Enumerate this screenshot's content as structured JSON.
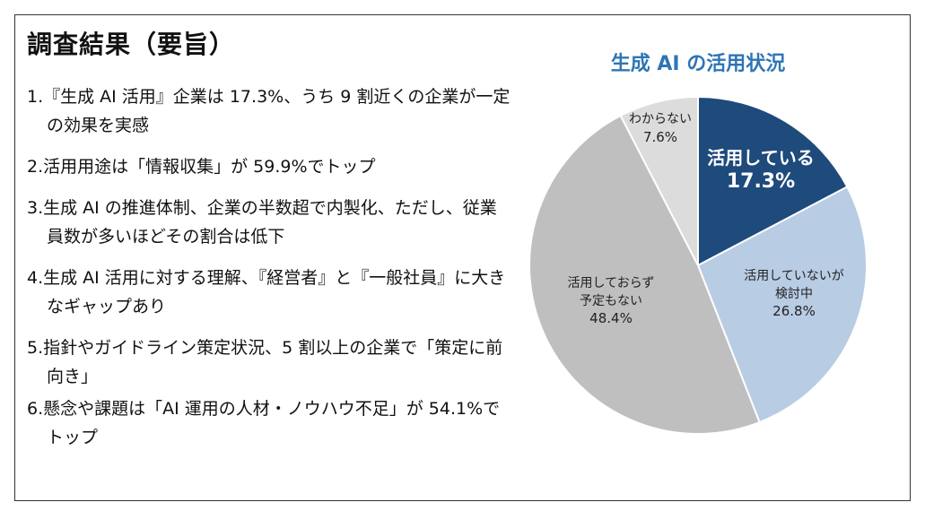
{
  "summary": {
    "heading": "調査結果（要旨）",
    "points": [
      "1.『生成 AI 活用』企業は 17.3%、うち 9 割近くの企業が一定の効果を実感",
      "2.活用用途は「情報収集」が 59.9%でトップ",
      "3.生成 AI の推進体制、企業の半数超で内製化、ただし、従業員数が多いほどその割合は低下",
      "4.生成 AI 活用に対する理解、『経営者』と『一般社員』に大きなギャップあり",
      "5.指針やガイドライン策定状況、5 割以上の企業で「策定に前向き」",
      "6.懸念や課題は「AI 運用の人材・ノウハウ不足」が 54.1%でトップ"
    ]
  },
  "chart_data": {
    "type": "pie",
    "title": "生成 AI の活用状況",
    "slices": [
      {
        "label": [
          "活用している"
        ],
        "value": 17.3,
        "value_label": "17.3%",
        "color": "#1f4a7c",
        "text_color": "#ffffff"
      },
      {
        "label": [
          "活用していないが",
          "検討中"
        ],
        "value": 26.8,
        "value_label": "26.8%",
        "color": "#b8cce4",
        "text_color": "#222222"
      },
      {
        "label": [
          "活用しておらず",
          "予定もない"
        ],
        "value": 48.4,
        "value_label": "48.4%",
        "color": "#bfbfbf",
        "text_color": "#222222"
      },
      {
        "label": [
          "わからない"
        ],
        "value": 7.6,
        "value_label": "7.6%",
        "color": "#dcdcdc",
        "text_color": "#222222"
      }
    ]
  }
}
